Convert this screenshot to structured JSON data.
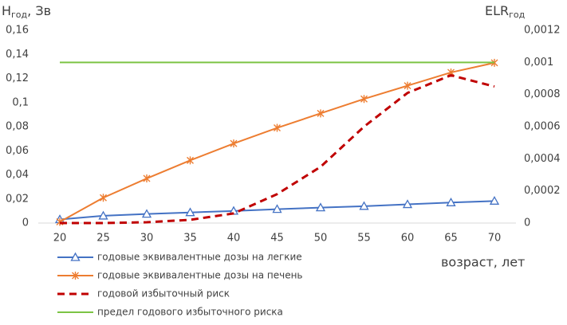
{
  "chart_data": {
    "type": "line",
    "y_label": {
      "main": "H",
      "sub": "год",
      "rest": ", Зв"
    },
    "y2_label": {
      "main": "ELR",
      "sub": "год"
    },
    "x_label": "возраст, лет",
    "categories": [
      "20",
      "25",
      "30",
      "35",
      "40",
      "45",
      "50",
      "55",
      "60",
      "65",
      "70"
    ],
    "ylim": [
      0,
      0.16
    ],
    "yticks": [
      0,
      {
        "value": 0.02,
        "label": "0,02"
      },
      {
        "value": 0.04,
        "label": "0,04"
      },
      {
        "value": 0.06,
        "label": "0,06"
      },
      {
        "value": 0.08,
        "label": "0,08"
      },
      {
        "value": 0.1,
        "label": "0,1"
      },
      {
        "value": 0.12,
        "label": "0,12"
      },
      {
        "value": 0.14,
        "label": "0,14"
      },
      {
        "value": 0.16,
        "label": "0,16"
      }
    ],
    "y2lim": [
      0,
      0.0012
    ],
    "y2ticks": [
      0,
      {
        "value": 0.0002,
        "label": "0,0002"
      },
      {
        "value": 0.0004,
        "label": "0,0004"
      },
      {
        "value": 0.0006,
        "label": "0,0006"
      },
      {
        "value": 0.0008,
        "label": "0,0008"
      },
      {
        "value": 0.001,
        "label": "0,001"
      },
      {
        "value": 0.0012,
        "label": "0,0012"
      }
    ],
    "series": [
      {
        "name": "годовые эквивалентные дозы на легкие",
        "color": "#4472c4",
        "marker": "triangle",
        "values": [
          0.003,
          0.006,
          0.0075,
          0.0088,
          0.01,
          0.0115,
          0.0128,
          0.014,
          0.0155,
          0.017,
          0.0183
        ]
      },
      {
        "name": "годовые эквивалентные дозы на печень",
        "color": "#ed7d31",
        "marker": "star",
        "values": [
          0.001,
          0.021,
          0.037,
          0.052,
          0.066,
          0.079,
          0.091,
          0.103,
          0.114,
          0.125,
          0.133
        ]
      },
      {
        "name": "годовой избыточный риск",
        "color": "#c00000",
        "dashed": true,
        "axis": "y2",
        "values": [
          0,
          0,
          5e-06,
          2e-05,
          6e-05,
          0.00018,
          0.00035,
          0.0006,
          0.00081,
          0.00092,
          0.00085
        ]
      },
      {
        "name": "предел годового избыточного риска",
        "color": "#7cc444",
        "axis": "y2",
        "values": [
          0.001,
          0.001,
          0.001,
          0.001,
          0.001,
          0.001,
          0.001,
          0.001,
          0.001,
          0.001,
          0.001
        ]
      }
    ]
  }
}
